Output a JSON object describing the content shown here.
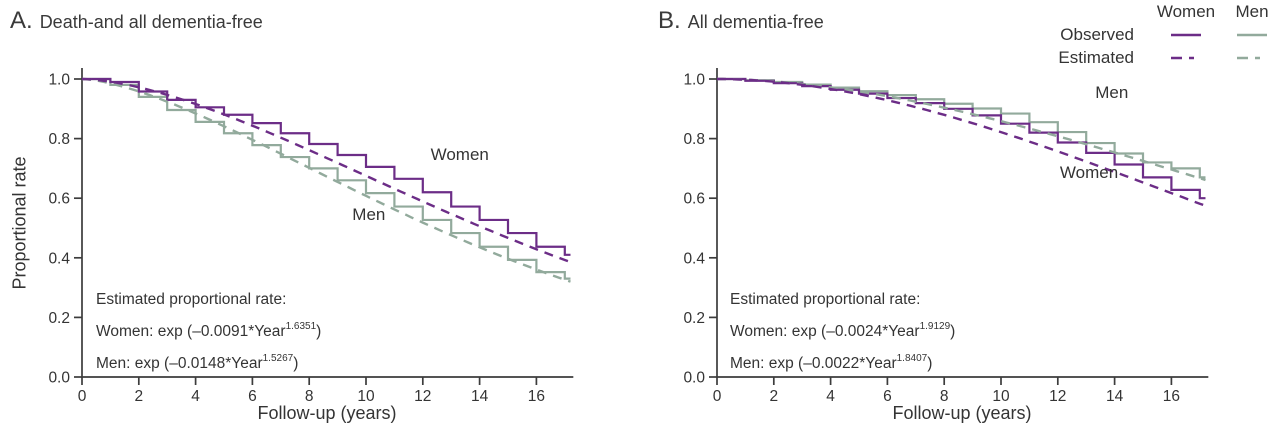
{
  "figure": {
    "colors": {
      "women": "#6c2d87",
      "men": "#92aa9c",
      "axis": "#3c3c3c",
      "text": "#343434"
    },
    "legend": {
      "col_headers": [
        "Women",
        "Men"
      ],
      "rows": [
        {
          "label": "Observed",
          "style": "solid"
        },
        {
          "label": "Estimated",
          "style": "dashed"
        }
      ]
    }
  },
  "chart_data": [
    {
      "panel": "A",
      "type": "line",
      "title_letter": "A.",
      "title_text": "Death-and all dementia-free",
      "xlabel": "Follow-up (years)",
      "ylabel": "Proportional rate",
      "xlim": [
        0,
        17.3
      ],
      "ylim": [
        0,
        1.04
      ],
      "xticks": [
        "0",
        "2",
        "4",
        "6",
        "8",
        "10",
        "12",
        "14",
        "16"
      ],
      "yticks": [
        "0.0",
        "0.2",
        "0.4",
        "0.6",
        "0.8",
        "1.0"
      ],
      "series": [
        {
          "name": "Men observed",
          "type": "step",
          "color": "men",
          "values": [
            1.0,
            0.98,
            0.94,
            0.896,
            0.856,
            0.818,
            0.778,
            0.738,
            0.7,
            0.66,
            0.617,
            0.572,
            0.527,
            0.483,
            0.437,
            0.393,
            0.352,
            0.33
          ]
        },
        {
          "name": "Women observed",
          "type": "step",
          "color": "women",
          "values": [
            1.0,
            0.99,
            0.958,
            0.93,
            0.905,
            0.88,
            0.852,
            0.818,
            0.782,
            0.745,
            0.705,
            0.665,
            0.62,
            0.572,
            0.527,
            0.483,
            0.437,
            0.41
          ]
        },
        {
          "name": "Men estimated",
          "type": "dashed",
          "color": "men",
          "formula": {
            "a": 0.0148,
            "b": 1.5267
          }
        },
        {
          "name": "Women estimated",
          "type": "dashed",
          "color": "women",
          "formula": {
            "a": 0.0091,
            "b": 1.6351
          }
        }
      ],
      "annotations": [
        {
          "text": "Women",
          "x": 13.3,
          "y": 0.745
        },
        {
          "text": "Men",
          "x": 10.1,
          "y": 0.545
        }
      ],
      "equation": {
        "title": "Estimated proportional rate:",
        "lines": [
          {
            "pre": "Women: exp (–0.0091*Year",
            "sup": "1.6351",
            "post": ")"
          },
          {
            "pre": "Men: exp (–0.0148*Year",
            "sup": "1.5267",
            "post": ")"
          }
        ]
      }
    },
    {
      "panel": "B",
      "type": "line",
      "title_letter": "B.",
      "title_text": "All dementia-free",
      "xlabel": "Follow-up (years)",
      "xlim": [
        0,
        17.3
      ],
      "ylim": [
        0,
        1.04
      ],
      "xticks": [
        "0",
        "2",
        "4",
        "6",
        "8",
        "10",
        "12",
        "14",
        "16"
      ],
      "yticks": [
        "0.0",
        "0.2",
        "0.4",
        "0.6",
        "0.8",
        "1.0"
      ],
      "series": [
        {
          "name": "Men observed",
          "type": "step",
          "color": "men",
          "values": [
            1.0,
            0.996,
            0.99,
            0.981,
            0.971,
            0.959,
            0.946,
            0.932,
            0.917,
            0.901,
            0.884,
            0.855,
            0.822,
            0.785,
            0.75,
            0.72,
            0.7,
            0.67
          ]
        },
        {
          "name": "Women observed",
          "type": "step",
          "color": "women",
          "values": [
            1.0,
            0.994,
            0.986,
            0.976,
            0.964,
            0.951,
            0.936,
            0.919,
            0.9,
            0.878,
            0.85,
            0.82,
            0.787,
            0.752,
            0.713,
            0.67,
            0.628,
            0.6
          ]
        },
        {
          "name": "Men estimated",
          "type": "dashed",
          "color": "men",
          "formula": {
            "a": 0.0022,
            "b": 1.8407
          }
        },
        {
          "name": "Women estimated",
          "type": "dashed",
          "color": "women",
          "formula": {
            "a": 0.0024,
            "b": 1.9129
          }
        }
      ],
      "annotations": [
        {
          "text": "Men",
          "x": 13.9,
          "y": 0.953
        },
        {
          "text": "Women",
          "x": 13.1,
          "y": 0.685
        }
      ],
      "equation": {
        "title": "Estimated proportional rate:",
        "lines": [
          {
            "pre": "Women: exp (–0.0024*Year",
            "sup": "1.9129",
            "post": ")"
          },
          {
            "pre": "Men: exp (–0.0022*Year",
            "sup": "1.8407",
            "post": ")"
          }
        ]
      }
    }
  ]
}
